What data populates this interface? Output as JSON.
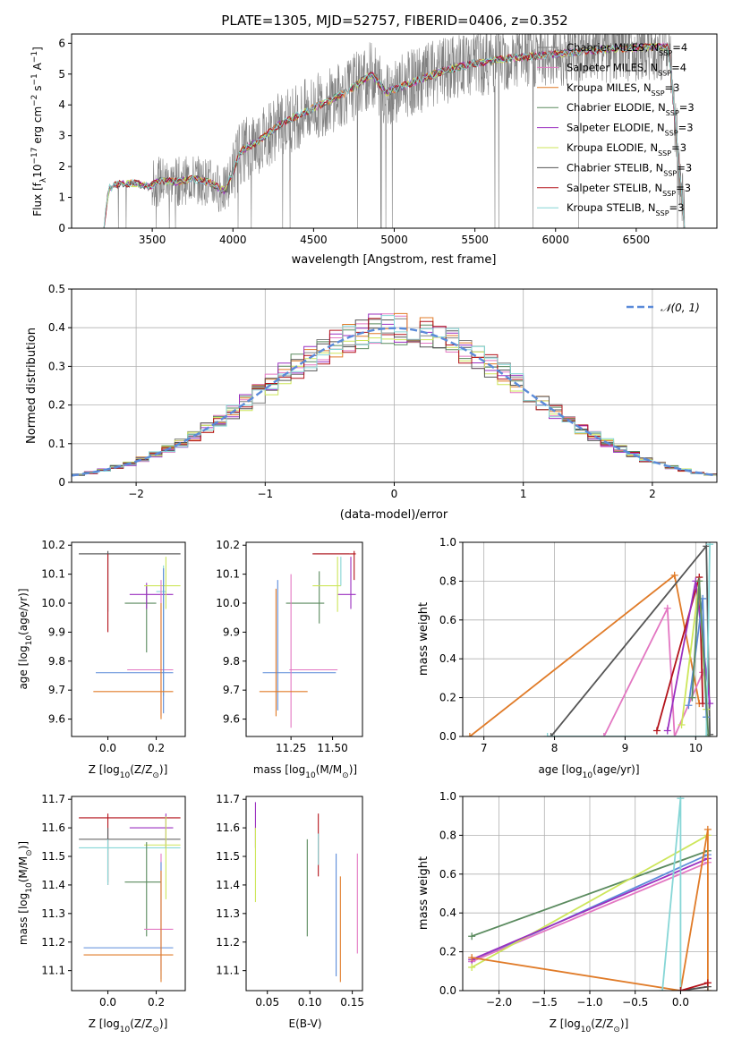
{
  "figure_title": "PLATE=1305, MJD=52757, FIBERID=0406, z=0.352",
  "colors": {
    "Chabrier MILES": "#808080",
    "Salpeter MILES": "#e377c2",
    "Kroupa MILES": "#e07b28",
    "Chabrier ELODIE": "#5a8a5e",
    "Salpeter ELODIE": "#9b30c0",
    "Kroupa ELODIE": "#cde65a",
    "Chabrier STELIB": "#555555",
    "Salpeter STELIB": "#b3121a",
    "Kroupa STELIB": "#86d6d6",
    "Gaussian": "#5b8bd9",
    "Blue": "#5b8bd9"
  },
  "chart_data": [
    {
      "id": "spectrum",
      "type": "line",
      "xlabel": "wavelength [Angstrom, rest frame]",
      "ylabel_parts": [
        "Flux [f",
        "λ",
        "10",
        "−17",
        " erg cm",
        "−2",
        " s",
        "−1",
        " A",
        "−1",
        "]"
      ],
      "xlim": [
        3000,
        7000
      ],
      "ylim": [
        0,
        6.3
      ],
      "xticks": [
        3500,
        4000,
        4500,
        5000,
        5500,
        6000,
        6500
      ],
      "yticks": [
        0,
        1,
        2,
        3,
        4,
        5,
        6
      ],
      "legend_position": "top-right",
      "legend": [
        {
          "name": "Chabrier MILES",
          "nssp": "4"
        },
        {
          "name": "Salpeter MILES",
          "nssp": "4"
        },
        {
          "name": "Kroupa MILES",
          "nssp": "3"
        },
        {
          "name": "Chabrier ELODIE",
          "nssp": "3"
        },
        {
          "name": "Salpeter ELODIE",
          "nssp": "3"
        },
        {
          "name": "Kroupa ELODIE",
          "nssp": "3"
        },
        {
          "name": "Chabrier STELIB",
          "nssp": "3"
        },
        {
          "name": "Salpeter STELIB",
          "nssp": "3"
        },
        {
          "name": "Kroupa STELIB",
          "nssp": "3"
        }
      ],
      "continuum_model": {
        "x": [
          3200,
          3230,
          3300,
          3400,
          3480,
          3550,
          3650,
          3750,
          3850,
          3950,
          4050,
          4150,
          4300,
          4500,
          4700,
          4860,
          4950,
          5100,
          5300,
          5500,
          5700,
          5900,
          6100,
          6300,
          6500,
          6700,
          6800
        ],
        "y": [
          0,
          1.3,
          1.45,
          1.45,
          1.35,
          1.55,
          1.5,
          1.6,
          1.5,
          1.2,
          2.5,
          2.8,
          3.4,
          3.9,
          4.4,
          5.0,
          4.4,
          4.7,
          5.1,
          5.35,
          5.5,
          5.6,
          5.7,
          5.8,
          5.85,
          5.9,
          0
        ]
      },
      "data_noise": "large scatter (grey) increasing beyond 4000 A"
    },
    {
      "id": "residuals",
      "type": "histogram",
      "xlabel": "(data-model)/error",
      "ylabel": "Normed distribution",
      "xlim": [
        -2.5,
        2.5
      ],
      "ylim": [
        0,
        0.5
      ],
      "xticks": [
        -2,
        -1,
        0,
        1,
        2
      ],
      "yticks": [
        0,
        0.1,
        0.2,
        0.3,
        0.4,
        0.5
      ],
      "grid": true,
      "bin_width": 0.1,
      "legend_position": "top-right",
      "gaussian_label": "𝒩(0, 1)",
      "series": [
        "Chabrier MILES",
        "Salpeter MILES",
        "Kroupa MILES",
        "Chabrier ELODIE",
        "Salpeter ELODIE",
        "Kroupa ELODIE",
        "Chabrier STELIB",
        "Salpeter STELIB",
        "Kroupa STELIB"
      ]
    },
    {
      "id": "age_vs_Z",
      "type": "errorbar",
      "xlabel_parts": [
        "Z [log",
        "10",
        "(Z/Z",
        "⊙",
        ")]"
      ],
      "ylabel_parts": [
        "age  [log",
        "10",
        "(age/yr)]"
      ],
      "xlim": [
        -0.15,
        0.32
      ],
      "ylim": [
        9.54,
        10.21
      ],
      "xticks": [
        0.0,
        0.2
      ],
      "xticklabels": [
        "0.0",
        "0.2"
      ],
      "yticks": [
        9.6,
        9.7,
        9.8,
        9.9,
        10.0,
        10.1,
        10.2
      ],
      "yticklabels": [
        "9.6",
        "9.7",
        "9.8",
        "9.9",
        "10.0",
        "10.1",
        "10.2"
      ],
      "points": [
        {
          "s": "Chabrier MILES",
          "x": 0.0,
          "y": 10.17,
          "xe": [
            -0.12,
            0.3
          ],
          "ye": [
            10.17,
            10.17
          ]
        },
        {
          "s": "Chabrier STELIB",
          "x": 0.0,
          "y": 10.17,
          "xe": [
            -0.12,
            0.3
          ],
          "ye": [
            9.97,
            10.18
          ]
        },
        {
          "s": "Salpeter STELIB",
          "x": 0.0,
          "y": 10.17,
          "xe": [
            0.0,
            0.0
          ],
          "ye": [
            9.9,
            10.17
          ]
        },
        {
          "s": "Chabrier ELODIE",
          "x": 0.16,
          "y": 10.0,
          "xe": [
            0.07,
            0.2
          ],
          "ye": [
            9.83,
            10.06
          ]
        },
        {
          "s": "Salpeter ELODIE",
          "x": 0.16,
          "y": 10.03,
          "xe": [
            0.09,
            0.27
          ],
          "ye": [
            9.98,
            10.07
          ]
        },
        {
          "s": "Kroupa ELODIE",
          "x": 0.24,
          "y": 10.06,
          "xe": [
            0.15,
            0.3
          ],
          "ye": [
            9.98,
            10.16
          ]
        },
        {
          "s": "Kroupa STELIB",
          "x": 0.23,
          "y": 10.04,
          "xe": [
            0.2,
            0.24
          ],
          "ye": [
            9.68,
            10.13
          ]
        },
        {
          "s": "Salpeter MILES",
          "x": 0.22,
          "y": 9.77,
          "xe": [
            0.08,
            0.27
          ],
          "ye": [
            9.61,
            10.08
          ]
        },
        {
          "s": "Blue",
          "x": 0.23,
          "y": 9.76,
          "xe": [
            -0.05,
            0.27
          ],
          "ye": [
            9.62,
            10.12
          ]
        },
        {
          "s": "Kroupa MILES",
          "x": 0.22,
          "y": 9.695,
          "xe": [
            -0.06,
            0.27
          ],
          "ye": [
            9.6,
            10.0
          ]
        }
      ]
    },
    {
      "id": "age_vs_mass",
      "type": "errorbar",
      "xlabel_parts": [
        "mass [log",
        "10",
        "(M/M",
        "⊙",
        ")]"
      ],
      "xlim": [
        10.98,
        11.68
      ],
      "ylim": [
        9.54,
        10.21
      ],
      "xticks": [
        11.25,
        11.5
      ],
      "xticklabels": [
        "11.25",
        "11.50"
      ],
      "yticks": [
        9.6,
        9.7,
        9.8,
        9.9,
        10.0,
        10.1,
        10.2
      ],
      "yticklabels": [
        "9.6",
        "9.7",
        "9.8",
        "9.9",
        "10.0",
        "10.1",
        "10.2"
      ],
      "points": [
        {
          "s": "Chabrier MILES",
          "x": 11.44,
          "y": 10.17,
          "xe": [
            11.38,
            11.6
          ],
          "ye": [
            10.17,
            10.17
          ]
        },
        {
          "s": "Salpeter STELIB",
          "x": 11.63,
          "y": 10.17,
          "xe": [
            11.38,
            11.64
          ],
          "ye": [
            10.08,
            10.18
          ]
        },
        {
          "s": "Chabrier ELODIE",
          "x": 11.42,
          "y": 10.0,
          "xe": [
            11.22,
            11.45
          ],
          "ye": [
            9.93,
            10.11
          ]
        },
        {
          "s": "Salpeter ELODIE",
          "x": 11.61,
          "y": 10.03,
          "xe": [
            11.53,
            11.64
          ],
          "ye": [
            9.98,
            10.16
          ]
        },
        {
          "s": "Kroupa ELODIE",
          "x": 11.53,
          "y": 10.06,
          "xe": [
            11.38,
            11.55
          ],
          "ye": [
            9.97,
            10.16
          ]
        },
        {
          "s": "Kroupa STELIB",
          "x": 11.55,
          "y": 10.1,
          "xe": [
            11.55,
            11.55
          ],
          "ye": [
            10.06,
            10.16
          ]
        },
        {
          "s": "Blue",
          "x": 11.17,
          "y": 9.76,
          "xe": [
            11.08,
            11.52
          ],
          "ye": [
            9.63,
            10.08
          ]
        },
        {
          "s": "Salpeter MILES",
          "x": 11.25,
          "y": 9.77,
          "xe": [
            11.24,
            11.53
          ],
          "ye": [
            9.57,
            10.1
          ]
        },
        {
          "s": "Kroupa MILES",
          "x": 11.16,
          "y": 9.695,
          "xe": [
            11.06,
            11.35
          ],
          "ye": [
            9.61,
            10.05
          ]
        }
      ]
    },
    {
      "id": "weight_vs_age",
      "type": "line",
      "xlabel_parts": [
        "age  [log",
        "10",
        "(age/yr)]"
      ],
      "ylabel": "mass weight",
      "xlim": [
        6.7,
        10.3
      ],
      "ylim": [
        0,
        1.0
      ],
      "xticks": [
        7,
        8,
        9,
        10
      ],
      "yticks": [
        0,
        0.2,
        0.4,
        0.6,
        0.8,
        1.0
      ],
      "yticklabels": [
        "0.0",
        "0.2",
        "0.4",
        "0.6",
        "0.8",
        "1.0"
      ],
      "grid": true,
      "lines": [
        {
          "s": "Kroupa MILES",
          "x": [
            6.8,
            9.7,
            10.05
          ],
          "y": [
            0.0,
            0.83,
            0.17
          ]
        },
        {
          "s": "Chabrier STELIB",
          "x": [
            7.95,
            10.15,
            10.2
          ],
          "y": [
            0.0,
            0.98,
            0.01
          ]
        },
        {
          "s": "Salpeter MILES",
          "x": [
            8.7,
            9.6,
            9.7,
            10.1
          ],
          "y": [
            0.0,
            0.66,
            0.0,
            0.33
          ]
        },
        {
          "s": "Salpeter STELIB",
          "x": [
            9.45,
            10.05,
            10.1
          ],
          "y": [
            0.03,
            0.82,
            0.17
          ]
        },
        {
          "s": "Salpeter ELODIE",
          "x": [
            9.6,
            10.0,
            10.2
          ],
          "y": [
            0.03,
            0.8,
            0.17
          ]
        },
        {
          "s": "Kroupa ELODIE",
          "x": [
            9.8,
            10.05,
            10.15
          ],
          "y": [
            0.06,
            0.8,
            0.14
          ]
        },
        {
          "s": "Blue",
          "x": [
            9.9,
            10.1,
            10.15
          ],
          "y": [
            0.16,
            0.71,
            0.1
          ]
        },
        {
          "s": "Kroupa STELIB",
          "x": [
            7.9,
            10.15,
            10.2
          ],
          "y": [
            0.0,
            0.0,
            0.99
          ]
        },
        {
          "s": "Chabrier ELODIE",
          "x": [
            9.95,
            10.05,
            10.18
          ],
          "y": [
            0.2,
            0.8,
            0.0
          ]
        }
      ]
    },
    {
      "id": "mass_vs_Z",
      "type": "errorbar",
      "xlabel_parts": [
        "Z [log",
        "10",
        "(Z/Z",
        "⊙",
        ")]"
      ],
      "ylabel_parts": [
        "mass [log",
        "10",
        "(M/M",
        "⊙",
        ")]"
      ],
      "xlim": [
        -0.15,
        0.32
      ],
      "ylim": [
        11.03,
        11.71
      ],
      "xticks": [
        0.0,
        0.2
      ],
      "xticklabels": [
        "0.0",
        "0.2"
      ],
      "yticks": [
        11.1,
        11.2,
        11.3,
        11.4,
        11.5,
        11.6,
        11.7
      ],
      "yticklabels": [
        "11.1",
        "11.2",
        "11.3",
        "11.4",
        "11.5",
        "11.6",
        "11.7"
      ],
      "points": [
        {
          "s": "Salpeter STELIB",
          "x": 0.0,
          "y": 11.635,
          "xe": [
            -0.12,
            0.3
          ],
          "ye": [
            11.4,
            11.65
          ]
        },
        {
          "s": "Chabrier STELIB",
          "x": 0.0,
          "y": 11.56,
          "xe": [
            -0.12,
            0.3
          ],
          "ye": [
            11.41,
            11.6
          ]
        },
        {
          "s": "Kroupa STELIB",
          "x": 0.0,
          "y": 11.53,
          "xe": [
            -0.12,
            0.3
          ],
          "ye": [
            11.4,
            11.56
          ]
        },
        {
          "s": "Salpeter ELODIE",
          "x": 0.24,
          "y": 11.6,
          "xe": [
            0.09,
            0.27
          ],
          "ye": [
            11.53,
            11.65
          ]
        },
        {
          "s": "Kroupa ELODIE",
          "x": 0.24,
          "y": 11.54,
          "xe": [
            0.15,
            0.3
          ],
          "ye": [
            11.35,
            11.64
          ]
        },
        {
          "s": "Chabrier ELODIE",
          "x": 0.16,
          "y": 11.41,
          "xe": [
            0.07,
            0.22
          ],
          "ye": [
            11.22,
            11.55
          ]
        },
        {
          "s": "Salpeter MILES",
          "x": 0.22,
          "y": 11.245,
          "xe": [
            0.15,
            0.27
          ],
          "ye": [
            11.1,
            11.51
          ]
        },
        {
          "s": "Blue",
          "x": 0.22,
          "y": 11.18,
          "xe": [
            -0.1,
            0.27
          ],
          "ye": [
            11.07,
            11.48
          ]
        },
        {
          "s": "Kroupa MILES",
          "x": 0.22,
          "y": 11.155,
          "xe": [
            -0.1,
            0.27
          ],
          "ye": [
            11.06,
            11.45
          ]
        }
      ]
    },
    {
      "id": "mass_vs_ebv",
      "type": "errorbar",
      "xlabel": "E(B-V)",
      "xlim": [
        0.025,
        0.162
      ],
      "ylim": [
        11.03,
        11.71
      ],
      "xticks": [
        0.05,
        0.1,
        0.15
      ],
      "xticklabels": [
        "0.05",
        "0.10",
        "0.15"
      ],
      "yticks": [
        11.1,
        11.2,
        11.3,
        11.4,
        11.5,
        11.6,
        11.7
      ],
      "yticklabels": [
        "11.1",
        "11.2",
        "11.3",
        "11.4",
        "11.5",
        "11.6",
        "11.7"
      ],
      "points": [
        {
          "s": "Salpeter ELODIE",
          "x": 0.036,
          "y": 11.6,
          "ye": [
            11.53,
            11.69
          ]
        },
        {
          "s": "Kroupa ELODIE",
          "x": 0.036,
          "y": 11.5,
          "ye": [
            11.34,
            11.6
          ]
        },
        {
          "s": "Chabrier ELODIE",
          "x": 0.097,
          "y": 11.4,
          "ye": [
            11.22,
            11.56
          ]
        },
        {
          "s": "Salpeter STELIB",
          "x": 0.11,
          "y": 11.58,
          "ye": [
            11.43,
            11.65
          ]
        },
        {
          "s": "Kroupa STELIB",
          "x": 0.11,
          "y": 11.52,
          "ye": [
            11.47,
            11.58
          ]
        },
        {
          "s": "Blue",
          "x": 0.131,
          "y": 11.3,
          "ye": [
            11.08,
            11.51
          ]
        },
        {
          "s": "Kroupa MILES",
          "x": 0.136,
          "y": 11.25,
          "ye": [
            11.06,
            11.43
          ]
        },
        {
          "s": "Salpeter MILES",
          "x": 0.156,
          "y": 11.33,
          "ye": [
            11.16,
            11.51
          ]
        }
      ]
    },
    {
      "id": "weight_vs_Z",
      "type": "line",
      "xlabel_parts": [
        "Z [log",
        "10",
        "(Z/Z",
        "⊙",
        ")]"
      ],
      "ylabel": "mass weight",
      "xlim": [
        -2.4,
        0.4
      ],
      "ylim": [
        0,
        1.0
      ],
      "xticks": [
        -2.0,
        -1.5,
        -1.0,
        -0.5,
        0.0
      ],
      "xticklabels": [
        "−2.0",
        "−1.5",
        "−1.0",
        "−0.5",
        "0.0"
      ],
      "yticks": [
        0,
        0.2,
        0.4,
        0.6,
        0.8,
        1.0
      ],
      "yticklabels": [
        "0.0",
        "0.2",
        "0.4",
        "0.6",
        "0.8",
        "1.0"
      ],
      "grid": true,
      "lines": [
        {
          "s": "Chabrier ELODIE",
          "x": [
            -2.3,
            0.3
          ],
          "y": [
            0.28,
            0.72
          ]
        },
        {
          "s": "Blue",
          "x": [
            -2.3,
            0.3
          ],
          "y": [
            0.15,
            0.7
          ]
        },
        {
          "s": "Salpeter MILES",
          "x": [
            -2.3,
            0.3
          ],
          "y": [
            0.15,
            0.66
          ]
        },
        {
          "s": "Kroupa ELODIE",
          "x": [
            -2.3,
            0.3
          ],
          "y": [
            0.12,
            0.8
          ]
        },
        {
          "s": "Salpeter ELODIE",
          "x": [
            -2.3,
            0.3
          ],
          "y": [
            0.16,
            0.68
          ]
        },
        {
          "s": "Kroupa MILES",
          "x": [
            -2.3,
            0.0,
            0.3,
            0.3
          ],
          "y": [
            0.17,
            0.0,
            0.83,
            0.0
          ]
        },
        {
          "s": "Kroupa STELIB",
          "x": [
            -0.2,
            0.0,
            0.0
          ],
          "y": [
            0.0,
            0.99,
            0.0
          ]
        },
        {
          "s": "Chabrier STELIB",
          "x": [
            0.0,
            0.3
          ],
          "y": [
            0.0,
            0.02
          ]
        },
        {
          "s": "Salpeter STELIB",
          "x": [
            0.0,
            0.3
          ],
          "y": [
            0.0,
            0.04
          ]
        }
      ]
    }
  ]
}
